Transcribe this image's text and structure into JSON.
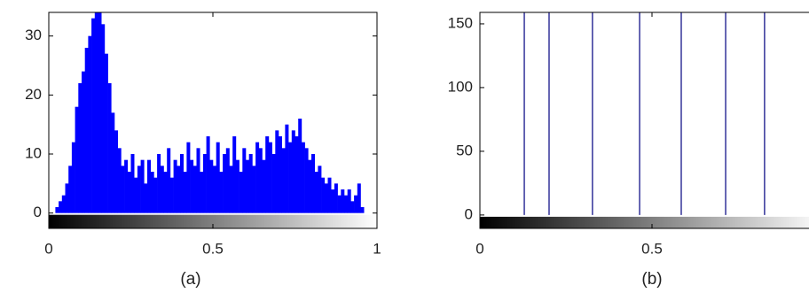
{
  "chart_data": [
    {
      "type": "histogram",
      "caption": "(a)",
      "color": "#0000ff",
      "bins": [
        0,
        0.01,
        0.02,
        0.03,
        0.04,
        0.05,
        0.06,
        0.07,
        0.08,
        0.09,
        0.1,
        0.11,
        0.12,
        0.13,
        0.14,
        0.15,
        0.16,
        0.17,
        0.18,
        0.19,
        0.2,
        0.21,
        0.22,
        0.23,
        0.24,
        0.25,
        0.26,
        0.27,
        0.28,
        0.29,
        0.3,
        0.31,
        0.32,
        0.33,
        0.34,
        0.35,
        0.36,
        0.37,
        0.38,
        0.39,
        0.4,
        0.41,
        0.42,
        0.43,
        0.44,
        0.45,
        0.46,
        0.47,
        0.48,
        0.49,
        0.5,
        0.51,
        0.52,
        0.53,
        0.54,
        0.55,
        0.56,
        0.57,
        0.58,
        0.59,
        0.6,
        0.61,
        0.62,
        0.63,
        0.64,
        0.65,
        0.66,
        0.67,
        0.68,
        0.69,
        0.7,
        0.71,
        0.72,
        0.73,
        0.74,
        0.75,
        0.76,
        0.77,
        0.78,
        0.79,
        0.8,
        0.81,
        0.82,
        0.83,
        0.84,
        0.85,
        0.86,
        0.87,
        0.88,
        0.89,
        0.9,
        0.91,
        0.92,
        0.93,
        0.94,
        0.95,
        0.96
      ],
      "values": [
        0,
        0,
        1,
        2,
        3,
        5,
        8,
        12,
        18,
        22,
        24,
        28,
        30,
        33,
        34,
        34,
        32,
        27,
        22,
        17,
        14,
        11,
        8,
        9,
        7,
        10,
        6,
        8,
        9,
        5,
        9,
        7,
        6,
        10,
        8,
        7,
        11,
        6,
        9,
        8,
        10,
        7,
        12,
        9,
        8,
        11,
        7,
        10,
        13,
        9,
        8,
        12,
        7,
        10,
        11,
        8,
        13,
        9,
        7,
        11,
        9,
        10,
        8,
        12,
        11,
        9,
        13,
        12,
        10,
        14,
        13,
        11,
        15,
        12,
        14,
        13,
        16,
        12,
        11,
        9,
        10,
        7,
        8,
        6,
        5,
        6,
        4,
        5,
        3,
        4,
        3,
        4,
        2,
        3,
        5,
        1
      ],
      "xlim": [
        0,
        1
      ],
      "xticks": [
        0,
        0.5,
        1
      ],
      "ylim": [
        -2.6,
        34
      ],
      "yticks": [
        0,
        10,
        20,
        30
      ]
    },
    {
      "type": "stem",
      "caption": "(b)",
      "color": "#333399",
      "x": [
        0.129,
        0.201,
        0.327,
        0.464,
        0.585,
        0.714,
        0.827
      ],
      "values": [
        170,
        170,
        170,
        170,
        170,
        170,
        170
      ],
      "xlim": [
        0,
        1
      ],
      "xticks": [
        0,
        0.5
      ],
      "ylim": [
        -10.5,
        159
      ],
      "yticks": [
        0,
        50,
        100,
        150
      ]
    }
  ]
}
